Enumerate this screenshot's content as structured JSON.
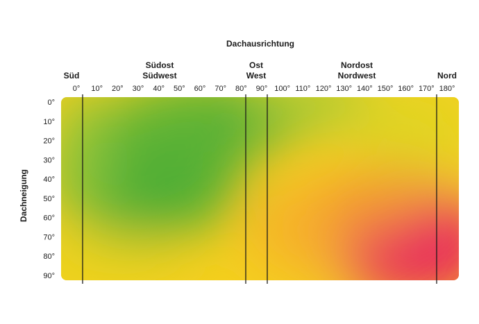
{
  "chart_data": {
    "type": "heatmap",
    "title": "Dachausrichtung",
    "xlabel": "",
    "ylabel": "Dachneigung",
    "x_ticks": [
      "0°",
      "10°",
      "20°",
      "30°",
      "40°",
      "50°",
      "60°",
      "70°",
      "80°",
      "90°",
      "100°",
      "110°",
      "120°",
      "130°",
      "140°",
      "150°",
      "160°",
      "170°",
      "180°"
    ],
    "y_ticks": [
      "0°",
      "10°",
      "20°",
      "30°",
      "40°",
      "50°",
      "60°",
      "70°",
      "80°",
      "90°"
    ],
    "xlim": [
      0,
      180
    ],
    "ylim": [
      0,
      90
    ],
    "direction_markers": [
      {
        "label": "Süd",
        "x": 0
      },
      {
        "label": "Südost\nSüdwest",
        "x": 45
      },
      {
        "label": "Ost\nWest",
        "x": 90
      },
      {
        "label": "Nordost\nNordwest",
        "x": 135
      },
      {
        "label": "Nord",
        "x": 180
      }
    ],
    "vertical_lines_x": [
      0,
      78,
      88,
      170
    ],
    "color_scale": [
      "#e8195f",
      "#f5a623",
      "#f7d21a",
      "#8cc43a",
      "#47ad36"
    ],
    "note": ""
  }
}
